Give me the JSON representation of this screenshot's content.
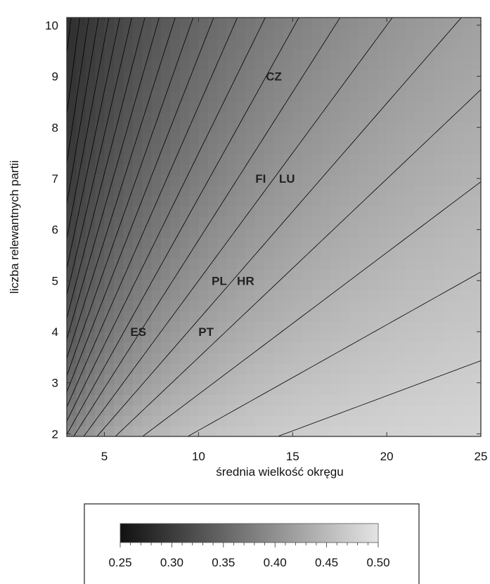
{
  "chart_data": {
    "type": "heatmap",
    "subtype": "contour",
    "title": "",
    "xlabel": "średnia wielkość okręgu",
    "ylabel": "liczba relewantnych partii",
    "xlim": [
      3,
      25
    ],
    "ylim": [
      1.95,
      10.15
    ],
    "x_ticks": [
      5,
      10,
      15,
      20,
      25
    ],
    "x_tick_labels": [
      "5",
      "10",
      "15",
      "20",
      "25"
    ],
    "y_ticks": [
      2,
      3,
      4,
      5,
      6,
      7,
      8,
      9,
      10
    ],
    "y_tick_labels": [
      "2",
      "3",
      "4",
      "5",
      "6",
      "7",
      "8",
      "9",
      "10"
    ],
    "colorscale": {
      "min": 0.25,
      "max": 0.5,
      "color_min": "#111111",
      "color_max": "#e4e4e4",
      "ticks": [
        0.25,
        0.3,
        0.35,
        0.4,
        0.45,
        0.5
      ],
      "tick_labels": [
        "0.25",
        "0.30",
        "0.35",
        "0.40",
        "0.45",
        "0.50"
      ]
    },
    "contour_color": "#000000",
    "contour_count": 30,
    "annotations": [
      {
        "text": "CZ",
        "x": 14.0,
        "y": 9.0
      },
      {
        "text": "FI",
        "x": 13.3,
        "y": 7.0
      },
      {
        "text": "LU",
        "x": 14.7,
        "y": 7.0
      },
      {
        "text": "PL",
        "x": 11.1,
        "y": 5.0
      },
      {
        "text": "HR",
        "x": 12.5,
        "y": 5.0
      },
      {
        "text": "ES",
        "x": 6.8,
        "y": 4.0
      },
      {
        "text": "PT",
        "x": 10.4,
        "y": 4.0
      }
    ]
  }
}
